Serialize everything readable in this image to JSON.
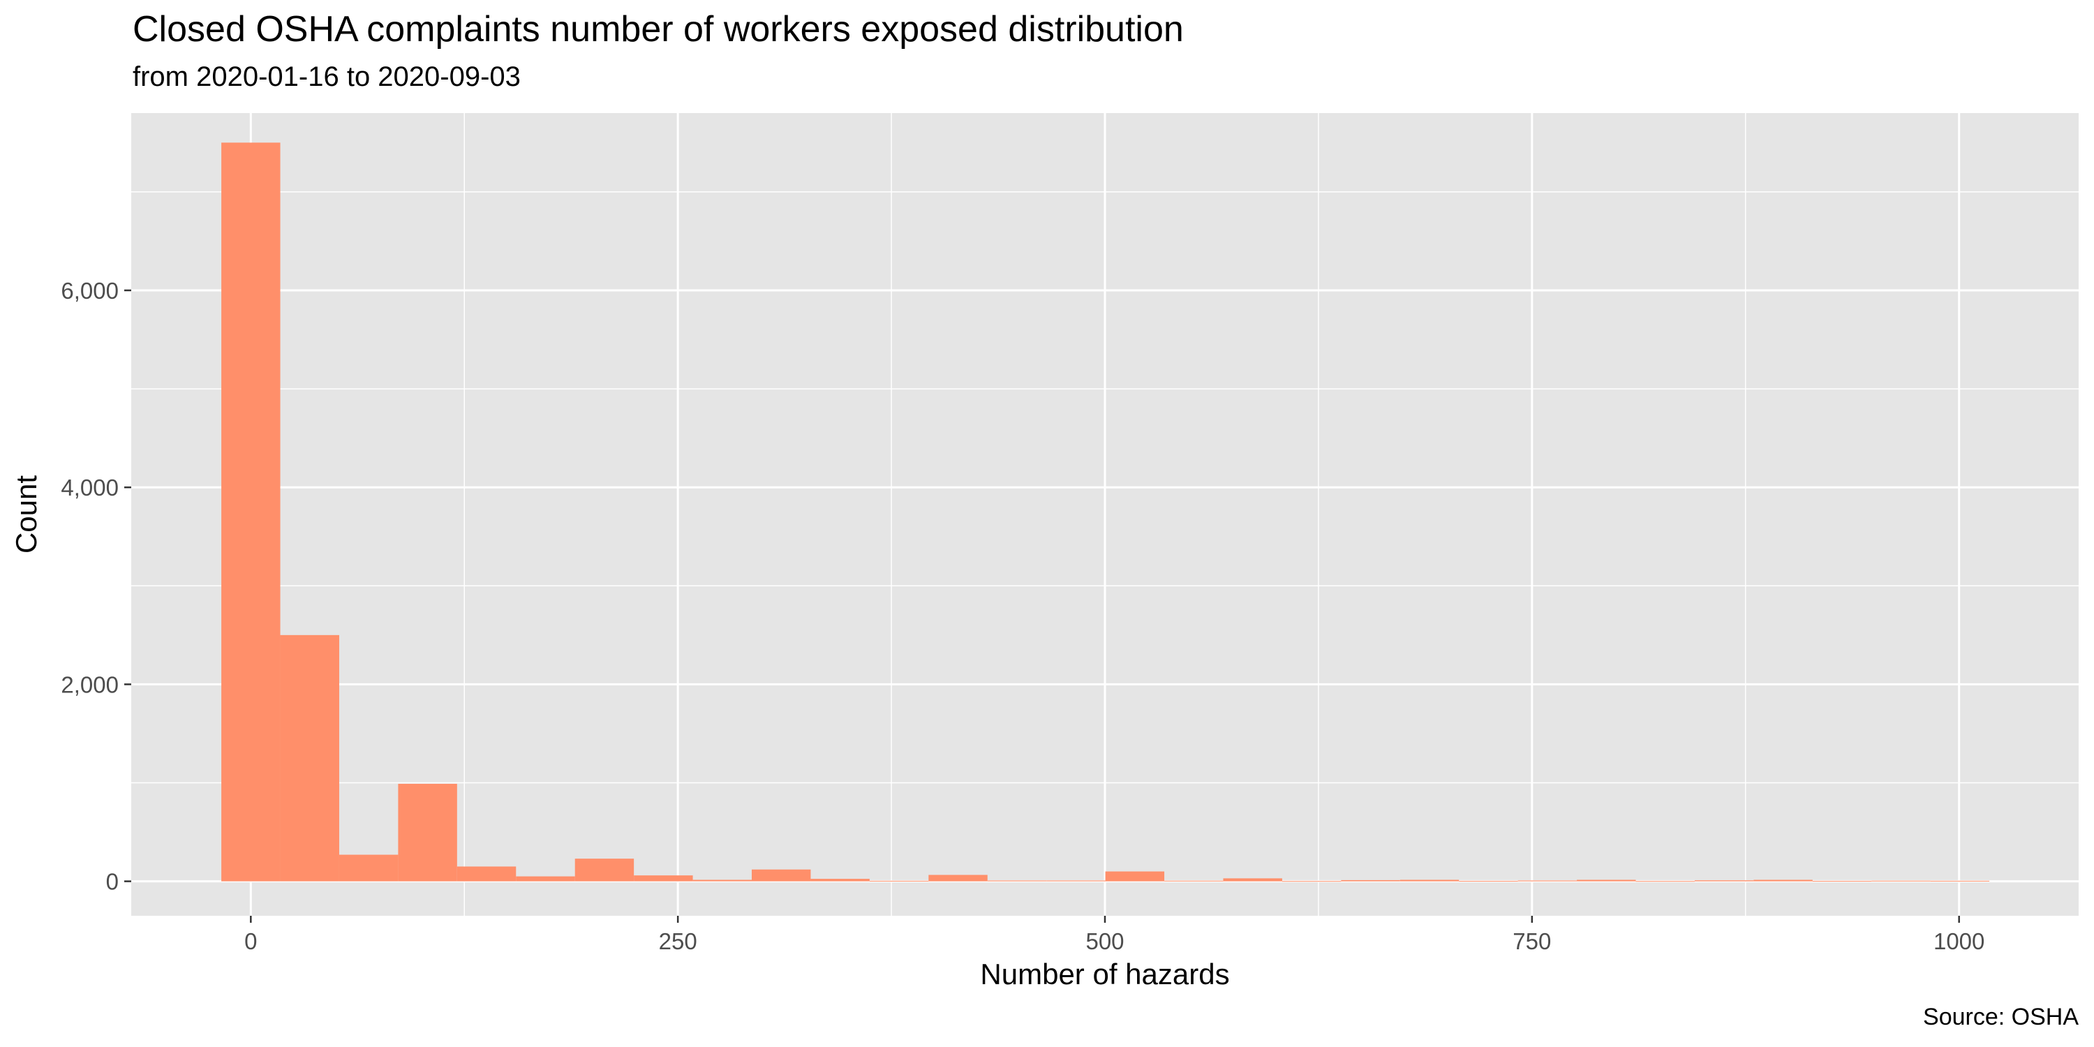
{
  "chart_data": {
    "type": "bar",
    "title": "Closed OSHA complaints number of workers exposed distribution",
    "subtitle": "from 2020-01-16 to 2020-09-03",
    "caption": "Source: OSHA",
    "xlabel": "Number of hazards",
    "ylabel": "Count",
    "xlim": [
      -70,
      1070
    ],
    "ylim": [
      -350,
      7800
    ],
    "x_ticks": [
      0,
      250,
      500,
      750,
      1000
    ],
    "x_tick_labels": [
      "0",
      "250",
      "500",
      "750",
      "1000"
    ],
    "y_ticks": [
      0,
      2000,
      4000,
      6000
    ],
    "y_tick_labels": [
      "0",
      "2,000",
      "4,000",
      "6,000"
    ],
    "bin_width": 34.5,
    "bin_centers": [
      0,
      34.5,
      69,
      103.5,
      138,
      172.5,
      207,
      241.5,
      276,
      310.5,
      345,
      379.5,
      414,
      448.5,
      483,
      517.5,
      552,
      586.5,
      621,
      655.5,
      690,
      724.5,
      759,
      793.5,
      828,
      862.5,
      897,
      931.5,
      966,
      1000.5
    ],
    "values": [
      7500,
      2500,
      270,
      990,
      150,
      50,
      230,
      60,
      15,
      120,
      25,
      5,
      65,
      8,
      8,
      100,
      6,
      30,
      3,
      12,
      15,
      4,
      8,
      15,
      3,
      10,
      15,
      4,
      6,
      5
    ],
    "grid": true,
    "legend": "none",
    "colors": {
      "panel": "#e5e5e5",
      "grid": "#ffffff",
      "bar": "#ff8f6a",
      "tick": "#333333"
    }
  }
}
